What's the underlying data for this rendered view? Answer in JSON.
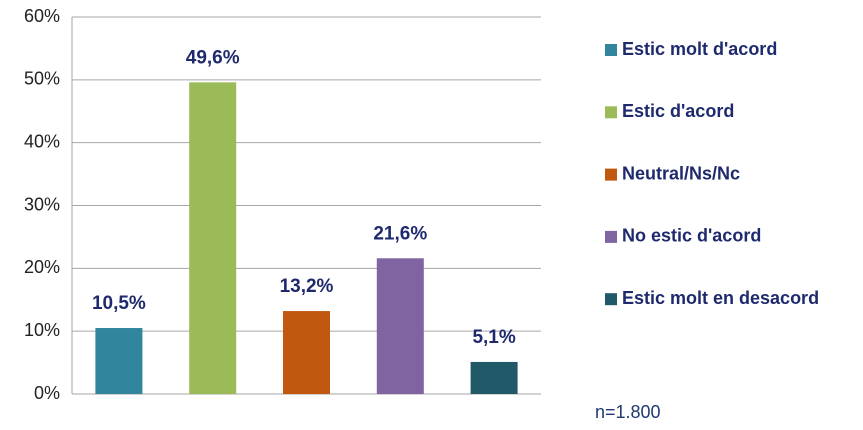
{
  "chart_data": {
    "type": "bar",
    "categories": [
      "Estic molt d'acord",
      "Estic d'acord",
      "Neutral/Ns/Nc",
      "No estic d'acord",
      "Estic molt en desacord"
    ],
    "values": [
      10.5,
      49.6,
      13.2,
      21.6,
      5.1
    ],
    "value_labels": [
      "10,5%",
      "49,6%",
      "13,2%",
      "21,6%",
      "5,1%"
    ],
    "colors": [
      "#31859c",
      "#9bbb59",
      "#c0580f",
      "#8064a2",
      "#215968"
    ],
    "ylim": [
      0,
      60
    ],
    "yticks": [
      {
        "value": 0,
        "label": "0%"
      },
      {
        "value": 10,
        "label": "10%"
      },
      {
        "value": 20,
        "label": "20%"
      },
      {
        "value": 30,
        "label": "30%"
      },
      {
        "value": 40,
        "label": "40%"
      },
      {
        "value": 50,
        "label": "50%"
      },
      {
        "value": 60,
        "label": "60%"
      }
    ],
    "grid": true,
    "legend": "right",
    "annotation": "n=1.800"
  }
}
